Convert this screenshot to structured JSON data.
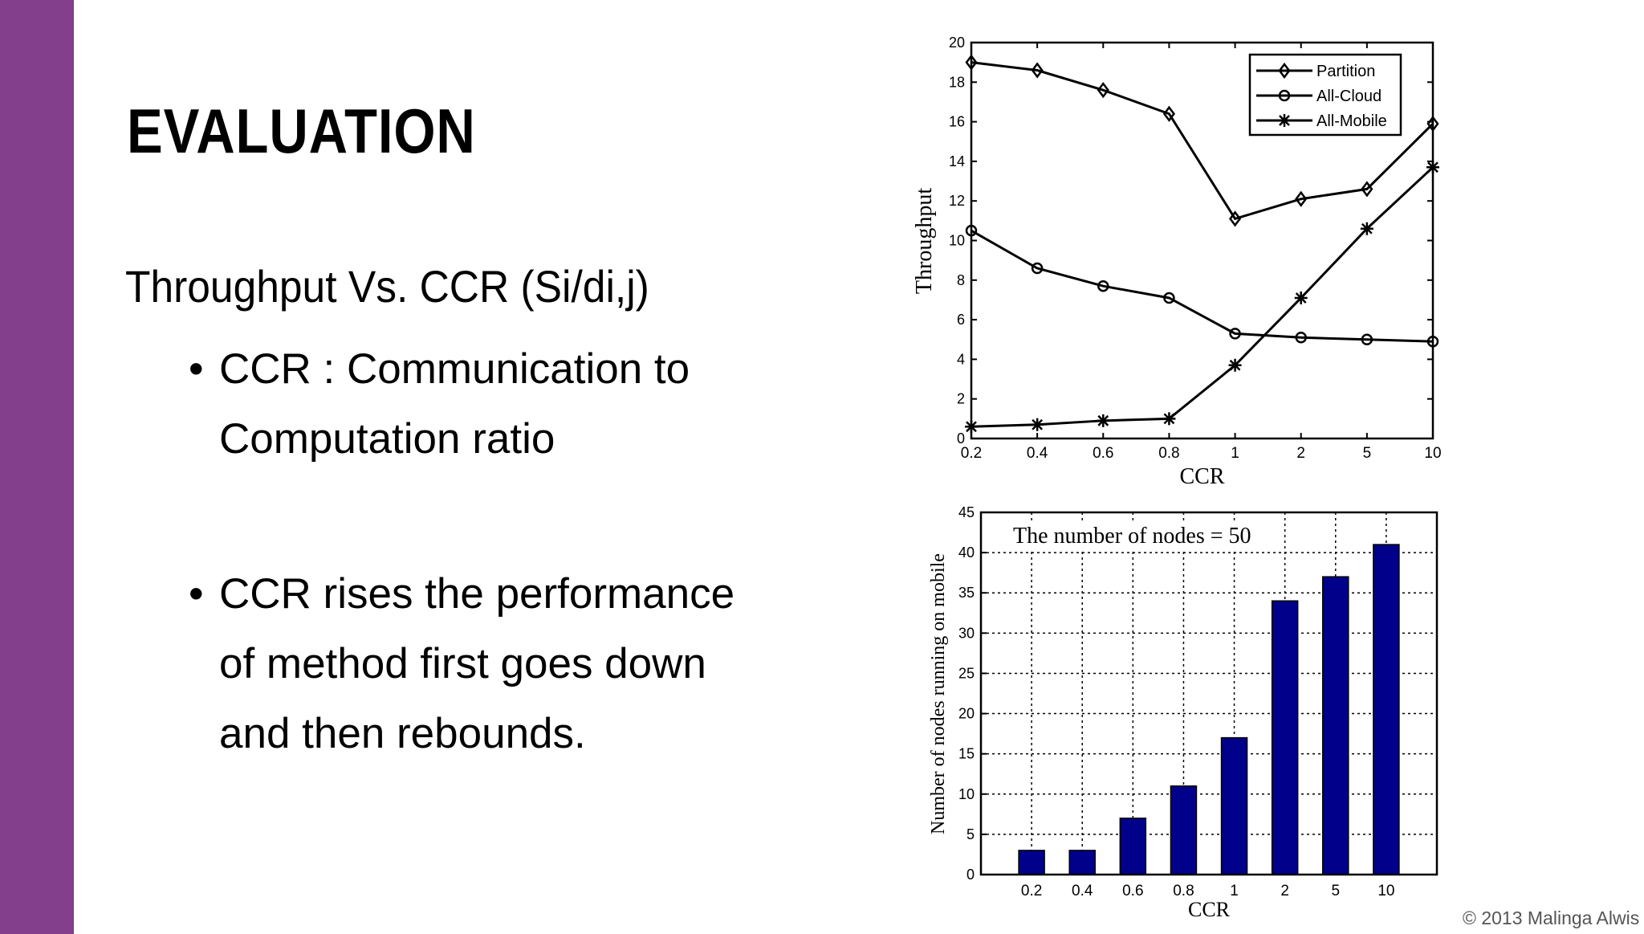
{
  "colors": {
    "accent": "#833e8c",
    "bar": "#00008b"
  },
  "slide": {
    "title": "EVALUATION",
    "subtitle": "Throughput Vs. CCR (Si/di,j)",
    "bullets": [
      {
        "dot": "•",
        "lines": [
          "CCR : Communication to",
          "Computation ratio"
        ]
      },
      {
        "dot": "•",
        "lines": [
          "CCR rises the performance",
          "of method first goes down",
          "and then rebounds."
        ]
      }
    ],
    "copyright": "© 2013 Malinga Alwis"
  },
  "chart_data": [
    {
      "type": "line",
      "title": "",
      "xlabel": "CCR",
      "ylabel": "Throughput",
      "categories": [
        "0.2",
        "0.4",
        "0.6",
        "0.8",
        "1",
        "2",
        "5",
        "10"
      ],
      "yticks": [
        "0",
        "2",
        "4",
        "6",
        "8",
        "10",
        "12",
        "14",
        "16",
        "18",
        "20"
      ],
      "ylim": [
        0,
        20
      ],
      "grid": false,
      "legend": "top-right",
      "series": [
        {
          "name": "Partition",
          "marker": "diamond",
          "values": [
            19.0,
            18.6,
            17.6,
            16.4,
            11.1,
            12.1,
            12.6,
            15.9
          ]
        },
        {
          "name": "All-Cloud",
          "marker": "circle",
          "values": [
            10.5,
            8.6,
            7.7,
            7.1,
            5.3,
            5.1,
            5.0,
            4.9
          ]
        },
        {
          "name": "All-Mobile",
          "marker": "star",
          "values": [
            0.6,
            0.7,
            0.9,
            1.0,
            3.7,
            7.1,
            10.6,
            13.7
          ]
        }
      ]
    },
    {
      "type": "bar",
      "annotation": "The number of nodes = 50",
      "xlabel": "CCR",
      "ylabel": "Number of nodes running on mobile",
      "categories": [
        "0.2",
        "0.4",
        "0.6",
        "0.8",
        "1",
        "2",
        "5",
        "10"
      ],
      "yticks": [
        "0",
        "5",
        "10",
        "15",
        "20",
        "25",
        "30",
        "35",
        "40",
        "45"
      ],
      "values": [
        3,
        3,
        7,
        11,
        17,
        34,
        37,
        41
      ],
      "ylim": [
        0,
        45
      ],
      "grid": true
    }
  ]
}
